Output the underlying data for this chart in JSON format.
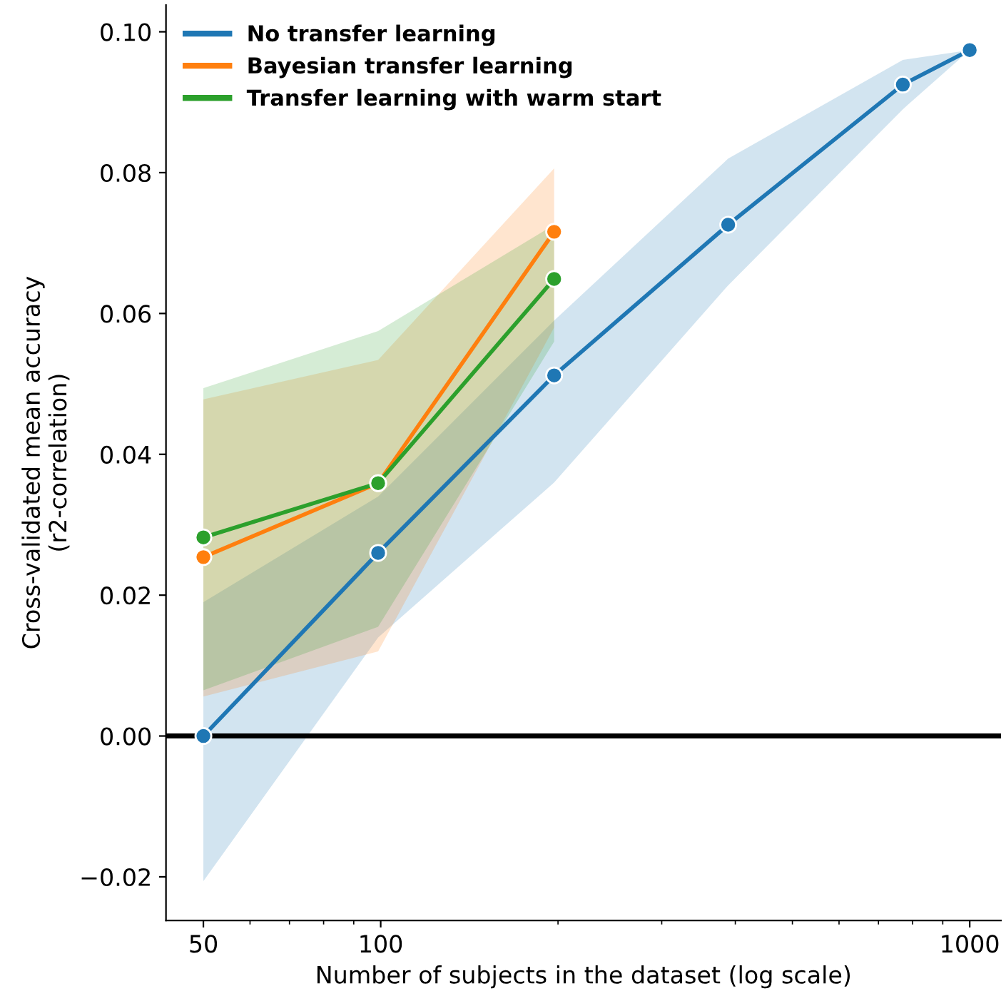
{
  "chart_data": {
    "type": "line",
    "xlabel": "Number of subjects in the dataset (log scale)",
    "ylabel": "Cross-validated mean accuracy\n(r2-correlation)",
    "log": "x",
    "marker": "circle",
    "line_style": "solid",
    "legend": "top left",
    "grid": false,
    "xlim": [
      43.2,
      1130
    ],
    "xticks": [
      50,
      100,
      1000
    ],
    "ylim": [
      -0.0262,
      0.1038
    ],
    "yticks": [
      {
        "value": -0.02,
        "label": "−0.02"
      },
      {
        "value": 0.0,
        "label": "0.00"
      },
      {
        "value": 0.02,
        "label": "0.02"
      },
      {
        "value": 0.04,
        "label": "0.04"
      },
      {
        "value": 0.06,
        "label": "0.06"
      },
      {
        "value": 0.08,
        "label": "0.08"
      },
      {
        "value": 0.1,
        "label": "0.10"
      }
    ],
    "ref_lines": [
      {
        "axis": "y",
        "value": 0.0,
        "color": "#000000",
        "line_style": "solid"
      }
    ],
    "series": [
      {
        "name": "No transfer learning",
        "color": "#1f77b4",
        "x": [
          50,
          99,
          197,
          389,
          770,
          1000
        ],
        "values": [
          0.0,
          0.026,
          0.0512,
          0.0726,
          0.0925,
          0.0974
        ],
        "lower": [
          -0.0206,
          0.014,
          0.036,
          0.064,
          0.089,
          0.0974
        ],
        "upper": [
          0.019,
          0.034,
          0.059,
          0.082,
          0.096,
          0.0974
        ]
      },
      {
        "name": "Bayesian transfer learning",
        "color": "#ff7f0e",
        "x": [
          50,
          99,
          197
        ],
        "values": [
          0.0254,
          0.0359,
          0.0716
        ],
        "lower": [
          0.0056,
          0.012,
          0.058
        ],
        "upper": [
          0.0478,
          0.0534,
          0.0806
        ]
      },
      {
        "name": "Transfer learning with warm start",
        "color": "#2ca02c",
        "x": [
          50,
          99,
          197
        ],
        "values": [
          0.0282,
          0.0359,
          0.0649
        ],
        "lower": [
          0.0065,
          0.0155,
          0.056
        ],
        "upper": [
          0.0494,
          0.0575,
          0.0726
        ]
      }
    ]
  }
}
